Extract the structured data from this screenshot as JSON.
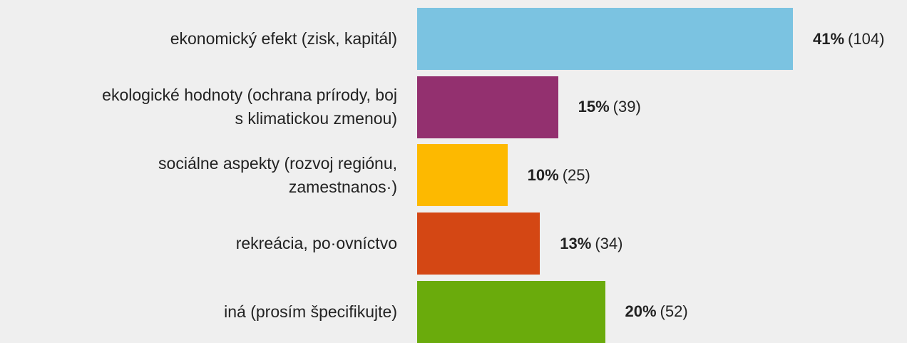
{
  "chart_data": {
    "type": "bar",
    "orientation": "horizontal",
    "categories": [
      "ekonomický efekt (zisk, kapitál)",
      "ekologické hodnoty (ochrana prírody, boj\ns klimatickou zmenou)",
      "sociálne aspekty (rozvoj regiónu,\nzamestnanos·)",
      "rekreácia, po·ovníctvo",
      "iná (prosím špecifikujte)"
    ],
    "values": [
      104,
      39,
      25,
      34,
      52
    ],
    "value_labels": [
      "(104)",
      "(39)",
      "(25)",
      "(34)",
      "(52)"
    ],
    "percent_labels": [
      "41%",
      "15%",
      "10%",
      "13%",
      "20%"
    ],
    "colors": [
      "#7bc3e1",
      "#93306f",
      "#fdb900",
      "#d44714",
      "#6aab0c"
    ]
  }
}
